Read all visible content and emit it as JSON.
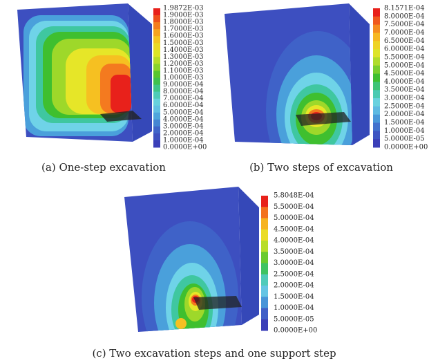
{
  "panels": [
    {
      "caption": "(a) One-step excavation",
      "legend": [
        "1.9872E-03",
        "1.9000E-03",
        "1.8000E-03",
        "1.7000E-03",
        "1.6000E-03",
        "1.5000E-03",
        "1.4000E-03",
        "1.3000E-03",
        "1.2000E-03",
        "1.1000E-03",
        "1.0000E-03",
        "9.0000E-04",
        "8.0000E-04",
        "7.0000E-04",
        "6.0000E-04",
        "5.0000E-04",
        "4.0000E-04",
        "3.0000E-04",
        "2.0000E-04",
        "1.0000E-04",
        "0.0000E+00"
      ]
    },
    {
      "caption": "(b) Two steps of excavation",
      "legend": [
        "8.1571E-04",
        "8.0000E-04",
        "7.5000E-04",
        "7.0000E-04",
        "6.5000E-04",
        "6.0000E-04",
        "5.5000E-04",
        "5.0000E-04",
        "4.5000E-04",
        "4.0000E-04",
        "3.5000E-04",
        "3.0000E-04",
        "2.5000E-04",
        "2.0000E-04",
        "1.5000E-04",
        "1.0000E-04",
        "5.0000E-05",
        "0.0000E+00"
      ]
    },
    {
      "caption": "(c) Two excavation steps and one support step",
      "legend": [
        "5.8048E-04",
        "5.5000E-04",
        "5.0000E-04",
        "4.5000E-04",
        "4.0000E-04",
        "3.5000E-04",
        "3.0000E-04",
        "2.5000E-04",
        "2.0000E-04",
        "1.5000E-04",
        "1.0000E-04",
        "5.0000E-05",
        "0.0000E+00"
      ]
    }
  ],
  "colorbar_palette": [
    "#e8211b",
    "#f47a1f",
    "#f6c021",
    "#e6e628",
    "#9ed82a",
    "#3fbf2f",
    "#3fc7a0",
    "#6fd3e8",
    "#4aa0db",
    "#3f62c8",
    "#3b3fb8"
  ]
}
